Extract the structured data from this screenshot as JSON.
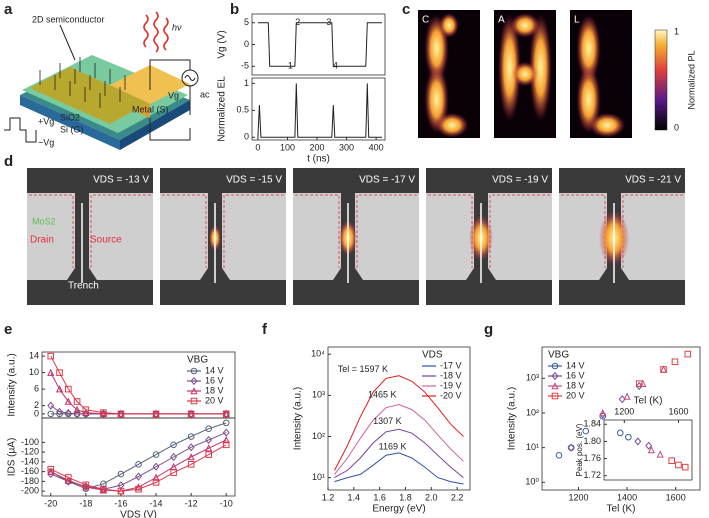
{
  "figure": {
    "panel_labels": [
      "a",
      "b",
      "c",
      "d",
      "e",
      "f",
      "g"
    ],
    "panel_a": {
      "semiconductor": "2D semiconductor",
      "light": "hν",
      "oxide": "SiO2",
      "gate": "Si (G)",
      "metal": "Metal (S)",
      "source": "Vg",
      "ac": "ac",
      "plus": "+Vg",
      "minus": "−Vg"
    },
    "panel_c": {
      "letters": [
        "C",
        "A",
        "L"
      ],
      "colorbar_max": "1",
      "colorbar_min": "0",
      "colorbar_label": "Normalized PL"
    },
    "panel_d": {
      "labels": [
        "VDS = -13 V",
        "VDS = -15 V",
        "VDS = -17 V",
        "VDS = -19 V",
        "VDS = -21 V"
      ],
      "material": "MoS2",
      "drain": "Drain",
      "source": "Source",
      "trench": "Trench"
    }
  },
  "chart_data": [
    {
      "type": "line",
      "ylabel": "Vg (V)",
      "xlim": [
        -20,
        430
      ],
      "ylim": [
        -7,
        7
      ],
      "yticks": [
        -5,
        0,
        5
      ],
      "x": [
        0,
        35,
        40,
        125,
        130,
        250,
        255,
        365,
        370,
        420
      ],
      "series": [
        {
          "color": "#222222",
          "values": [
            5,
            5,
            -5,
            -5,
            5,
            5,
            -5,
            -5,
            5,
            5
          ]
        }
      ],
      "annotations": [
        {
          "text": "1",
          "x": 110,
          "y": -5
        },
        {
          "text": "2",
          "x": 135,
          "y": 5
        },
        {
          "text": "3",
          "x": 240,
          "y": 5
        },
        {
          "text": "4",
          "x": 262,
          "y": -5
        }
      ]
    },
    {
      "type": "line",
      "ylabel": "Normalized EL",
      "xlabel": "t (ns)",
      "xlim": [
        -20,
        430
      ],
      "ylim": [
        -0.05,
        1.1
      ],
      "yticks": [
        0,
        0.5,
        1
      ],
      "xticks": [
        0,
        100,
        200,
        300,
        400
      ],
      "x": [
        0,
        5,
        10,
        15,
        120,
        125,
        130,
        135,
        245,
        250,
        255,
        260,
        365,
        370,
        375,
        380,
        420
      ],
      "series": [
        {
          "color": "#222222",
          "values": [
            0,
            0.6,
            0,
            0,
            0,
            0,
            1,
            0,
            0,
            0,
            0.6,
            0,
            0,
            1,
            0,
            0,
            0
          ]
        }
      ]
    },
    {
      "type": "line",
      "ylabel": "Intensity (a.u.)",
      "xlim": [
        -20.5,
        -9.5
      ],
      "ylim": [
        -1,
        15
      ],
      "yticks": [
        0,
        2,
        6,
        10,
        14
      ],
      "x": [
        -20,
        -19.5,
        -19,
        -18.5,
        -18,
        -17,
        -16,
        -14,
        -12,
        -10
      ],
      "legend": "upper right",
      "legend_title": "VBG",
      "series": [
        {
          "name": "14 V",
          "color": "#56627a",
          "marker": "circle",
          "values": [
            0,
            0,
            0,
            0,
            0,
            0,
            0,
            0,
            0,
            0
          ]
        },
        {
          "name": "16 V",
          "color": "#7b4f8a",
          "marker": "diamond",
          "values": [
            2,
            0.5,
            0.2,
            0,
            0,
            0,
            0,
            0,
            0,
            0
          ]
        },
        {
          "name": "18 V",
          "color": "#c0306a",
          "marker": "triangle",
          "values": [
            10,
            6,
            3,
            1,
            0.3,
            0,
            0,
            0,
            0,
            0
          ]
        },
        {
          "name": "20 V",
          "color": "#e03a48",
          "marker": "square",
          "values": [
            14,
            10,
            6,
            3,
            1,
            0.3,
            0,
            0,
            0,
            0
          ]
        }
      ]
    },
    {
      "type": "line",
      "ylabel": "IDS (μA)",
      "xlabel": "VDS (V)",
      "xlim": [
        -20.5,
        -9.5
      ],
      "ylim": [
        -210,
        -50
      ],
      "yticks": [
        -200,
        -180,
        -160,
        -140,
        -120,
        -100
      ],
      "xticks": [
        -20,
        -18,
        -16,
        -14,
        -12,
        -10
      ],
      "x": [
        -20,
        -19,
        -18,
        -17,
        -16,
        -15,
        -14,
        -13,
        -12,
        -11,
        -10
      ],
      "series": [
        {
          "color": "#56627a",
          "marker": "circle",
          "values": [
            -160,
            -180,
            -195,
            -185,
            -165,
            -145,
            -125,
            -105,
            -88,
            -72,
            -60
          ]
        },
        {
          "color": "#7b4f8a",
          "marker": "diamond",
          "values": [
            -165,
            -180,
            -190,
            -196,
            -188,
            -170,
            -150,
            -130,
            -110,
            -95,
            -80
          ]
        },
        {
          "color": "#c0306a",
          "marker": "triangle",
          "values": [
            -160,
            -178,
            -192,
            -198,
            -200,
            -192,
            -172,
            -150,
            -130,
            -112,
            -95
          ]
        },
        {
          "color": "#e03a48",
          "marker": "square",
          "values": [
            -155,
            -172,
            -187,
            -196,
            -200,
            -196,
            -182,
            -162,
            -145,
            -125,
            -105
          ]
        }
      ]
    },
    {
      "type": "line",
      "log_y": true,
      "ylabel": "Intensity (a.u.)",
      "xlabel": "Energy (eV)",
      "xlim": [
        1.2,
        2.3
      ],
      "ylim": [
        5,
        15000
      ],
      "yticks": [
        {
          "value": 10,
          "label": "10¹"
        },
        {
          "value": 100,
          "label": "10²"
        },
        {
          "value": 1000,
          "label": "10³"
        },
        {
          "value": 10000,
          "label": "10⁴"
        }
      ],
      "xticks": [
        1.2,
        1.4,
        1.6,
        1.8,
        {
          "value": 2,
          "label": "2.0"
        },
        2.2
      ],
      "x": [
        1.25,
        1.35,
        1.45,
        1.55,
        1.65,
        1.75,
        1.85,
        1.95,
        2.05,
        2.15,
        2.25
      ],
      "legend": "upper right",
      "legend_title": "VDS",
      "series": [
        {
          "name": "-17 V",
          "color": "#3050b0",
          "values": [
            8,
            10,
            12,
            20,
            35,
            40,
            30,
            18,
            10,
            8,
            7
          ]
        },
        {
          "name": "-18 V",
          "color": "#7a3ea0",
          "values": [
            10,
            15,
            30,
            70,
            130,
            150,
            120,
            70,
            35,
            18,
            10
          ]
        },
        {
          "name": "-19 V",
          "color": "#d060a0",
          "values": [
            12,
            30,
            90,
            250,
            500,
            600,
            450,
            250,
            110,
            50,
            25
          ]
        },
        {
          "name": "-20 V",
          "color": "#e02020",
          "values": [
            15,
            60,
            300,
            1200,
            2600,
            3000,
            2200,
            1200,
            500,
            200,
            100
          ]
        }
      ],
      "annotations": [
        {
          "text": "Tel = 1597 K",
          "x": 1.47,
          "y": 4200
        },
        {
          "text": "1465 K",
          "x": 1.62,
          "y": 1000
        },
        {
          "text": "1307 K",
          "x": 1.66,
          "y": 230
        },
        {
          "text": "1169 K",
          "x": 1.7,
          "y": 55
        }
      ]
    },
    {
      "type": "scatter",
      "log_y": true,
      "ylabel": "Intensity (a.u.)",
      "xlabel": "Tel (K)",
      "xlim": [
        1050,
        1700
      ],
      "ylim": [
        0.6,
        8000
      ],
      "yticks": [
        {
          "value": 1,
          "label": "10⁰"
        },
        {
          "value": 10,
          "label": "10¹"
        },
        {
          "value": 100,
          "label": "10²"
        },
        {
          "value": 1000,
          "label": "10³"
        }
      ],
      "xticks": [
        1200,
        1400,
        1600
      ],
      "legend": "upper left",
      "legend_title": "VBG",
      "series": [
        {
          "name": "14 V",
          "color": "#3a5da8",
          "marker": "circle",
          "x": [
            1120,
            1170,
            1230,
            1300
          ],
          "values": [
            6,
            10,
            30,
            80
          ]
        },
        {
          "name": "16 V",
          "color": "#7a4a9a",
          "marker": "diamond",
          "x": [
            1170,
            1300,
            1380,
            1450
          ],
          "values": [
            10,
            90,
            250,
            600
          ]
        },
        {
          "name": "18 V",
          "color": "#c04a7a",
          "marker": "triangle",
          "x": [
            1300,
            1400,
            1465,
            1550
          ],
          "values": [
            100,
            300,
            700,
            1800
          ]
        },
        {
          "name": "20 V",
          "color": "#e04040",
          "marker": "square",
          "x": [
            1450,
            1550,
            1597,
            1650
          ],
          "values": [
            700,
            1800,
            3000,
            5000
          ]
        }
      ]
    },
    {
      "type": "scatter",
      "inset": true,
      "xaxis_top": true,
      "ylabel": "Peak pos. (eV)",
      "xlabel": "Tel (K)",
      "xlim": [
        1050,
        1700
      ],
      "ylim": [
        1.71,
        1.85
      ],
      "yticks": [
        1.72,
        1.76,
        {
          "value": 1.8,
          "label": "1.80"
        },
        1.84
      ],
      "xticks": [
        1200,
        1600
      ],
      "series": [
        {
          "color": "#3a5da8",
          "marker": "circle",
          "x": [
            1170,
            1230
          ],
          "values": [
            1.82,
            1.81
          ]
        },
        {
          "color": "#7a4a9a",
          "marker": "diamond",
          "x": [
            1300,
            1380
          ],
          "values": [
            1.8,
            1.79
          ]
        },
        {
          "color": "#c04a7a",
          "marker": "triangle",
          "x": [
            1400,
            1465
          ],
          "values": [
            1.78,
            1.77
          ]
        },
        {
          "color": "#e04040",
          "marker": "square",
          "x": [
            1550,
            1600,
            1650
          ],
          "values": [
            1.755,
            1.745,
            1.74
          ]
        }
      ]
    }
  ]
}
